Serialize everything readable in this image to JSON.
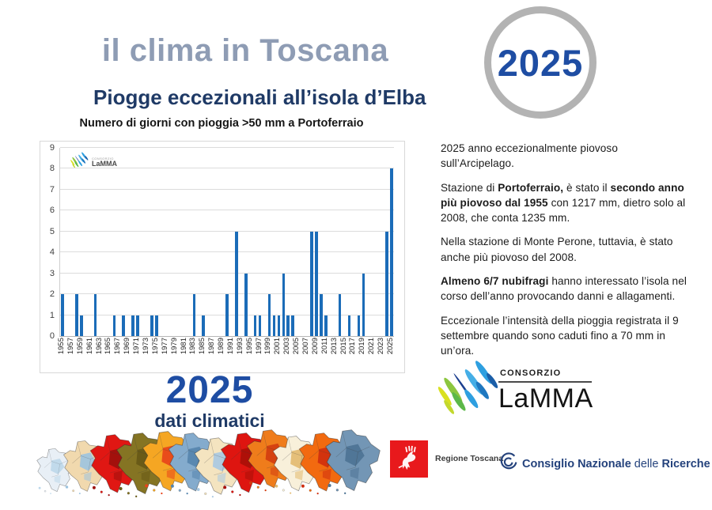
{
  "header": {
    "title": "il clima in Toscana",
    "subtitle": "Piogge eccezionali all’isola d’Elba",
    "badge_year": "2025"
  },
  "chart_data": {
    "type": "bar",
    "title": "Numero di giorni con pioggia >50 mm a Portoferraio",
    "xlabel": "",
    "ylabel": "",
    "ylim": [
      0,
      9
    ],
    "y_ticks": [
      0,
      1,
      2,
      3,
      4,
      5,
      6,
      7,
      8,
      9
    ],
    "x_tick_step": 2,
    "grid": true,
    "bar_color": "#1b6cb8",
    "categories": [
      1955,
      1956,
      1957,
      1958,
      1959,
      1960,
      1961,
      1962,
      1963,
      1964,
      1965,
      1966,
      1967,
      1968,
      1969,
      1970,
      1971,
      1972,
      1973,
      1974,
      1975,
      1976,
      1977,
      1978,
      1979,
      1980,
      1981,
      1982,
      1983,
      1984,
      1985,
      1986,
      1987,
      1988,
      1989,
      1990,
      1991,
      1992,
      1993,
      1994,
      1995,
      1996,
      1997,
      1998,
      1999,
      2000,
      2001,
      2002,
      2003,
      2004,
      2005,
      2006,
      2007,
      2008,
      2009,
      2010,
      2011,
      2012,
      2013,
      2014,
      2015,
      2016,
      2017,
      2018,
      2019,
      2020,
      2021,
      2022,
      2023,
      2024,
      2025
    ],
    "values": [
      2,
      0,
      0,
      2,
      1,
      0,
      0,
      2,
      0,
      0,
      0,
      1,
      0,
      1,
      0,
      1,
      1,
      0,
      0,
      1,
      1,
      0,
      0,
      0,
      0,
      0,
      0,
      0,
      2,
      0,
      1,
      0,
      0,
      0,
      0,
      2,
      0,
      5,
      0,
      3,
      0,
      1,
      1,
      0,
      2,
      1,
      1,
      3,
      1,
      1,
      0,
      0,
      0,
      5,
      5,
      2,
      1,
      0,
      0,
      2,
      0,
      1,
      0,
      1,
      3,
      0,
      0,
      0,
      0,
      5,
      8
    ]
  },
  "notes": {
    "paragraphs": [
      {
        "runs": [
          {
            "text": "2025 anno eccezionalmente piovoso sull’Arcipelago.",
            "bold": false
          }
        ]
      },
      {
        "runs": [
          {
            "text": "Stazione di ",
            "bold": false
          },
          {
            "text": "Portoferraio,",
            "bold": true
          },
          {
            "text": " è stato il ",
            "bold": false
          },
          {
            "text": "secondo anno più piovoso dal 1955",
            "bold": true
          },
          {
            "text": " con 1217 mm, dietro solo al 2008, che conta 1235 mm.",
            "bold": false
          }
        ]
      },
      {
        "runs": [
          {
            "text": "Nella stazione di Monte Perone, tuttavia, è stato anche più piovoso del 2008.",
            "bold": false
          }
        ]
      },
      {
        "runs": [
          {
            "text": "Almeno 6/7 nubifragi",
            "bold": true
          },
          {
            "text": " hanno interessato l’isola nel corso dell’anno provocando danni e allagamenti.",
            "bold": false
          }
        ]
      },
      {
        "runs": [
          {
            "text": "Eccezionale l’intensità della pioggia registrata il 9 settembre quando sono caduti fino a 70 mm in un’ora.",
            "bold": false
          }
        ]
      }
    ]
  },
  "footer": {
    "year_big": "2025",
    "year_caption": "dati climatici",
    "lamma": {
      "consorzio": "CONSORZIO",
      "name": "LaMMA",
      "stroke_colors": [
        "#d9e021",
        "#c3d82e",
        "#8cc63f",
        "#5cb849",
        "#1c3f8f",
        "#2e9fe0",
        "#45aee6",
        "#1f78c0",
        "#2e9fe0",
        "#1b5ea8"
      ]
    },
    "regione_label": "Regione Toscana",
    "cnr": {
      "bold1": "Consiglio Nazionale",
      "regular": " delle ",
      "bold2": "Ricerche"
    },
    "maps": [
      {
        "fill": "#e8eff6",
        "patch": "#bcd7ea"
      },
      {
        "fill": "#f1d9ae",
        "patch": "#9cc3e0"
      },
      {
        "fill": "#e01713",
        "patch": "#9c100c"
      },
      {
        "fill": "#857423",
        "patch": "#665816"
      },
      {
        "fill": "#f5a623",
        "patch": "#e8431a"
      },
      {
        "fill": "#84abcd",
        "patch": "#5584ad"
      },
      {
        "fill": "#f4e4c0",
        "patch": "#a8c8e2"
      },
      {
        "fill": "#de1510",
        "patch": "#a81008"
      },
      {
        "fill": "#ef7c1b",
        "patch": "#d13c10"
      },
      {
        "fill": "#f8f0da",
        "patch": "#e2b96e"
      },
      {
        "fill": "#f26a10",
        "patch": "#cf2d0e"
      },
      {
        "fill": "#7396b5",
        "patch": "#4c7293"
      }
    ]
  },
  "colors": {
    "title": "#8e9cb4",
    "subtitle": "#1f3a66",
    "accent": "#1e4da3",
    "bar": "#1b6cb8",
    "grid": "#dcdcdc",
    "axis": "#b5b5b5",
    "ring": "#b3b3b3",
    "text": "#1b1b1b",
    "cnr": "#24427c",
    "red": "#e8191c",
    "border": "#d8d8d8"
  }
}
